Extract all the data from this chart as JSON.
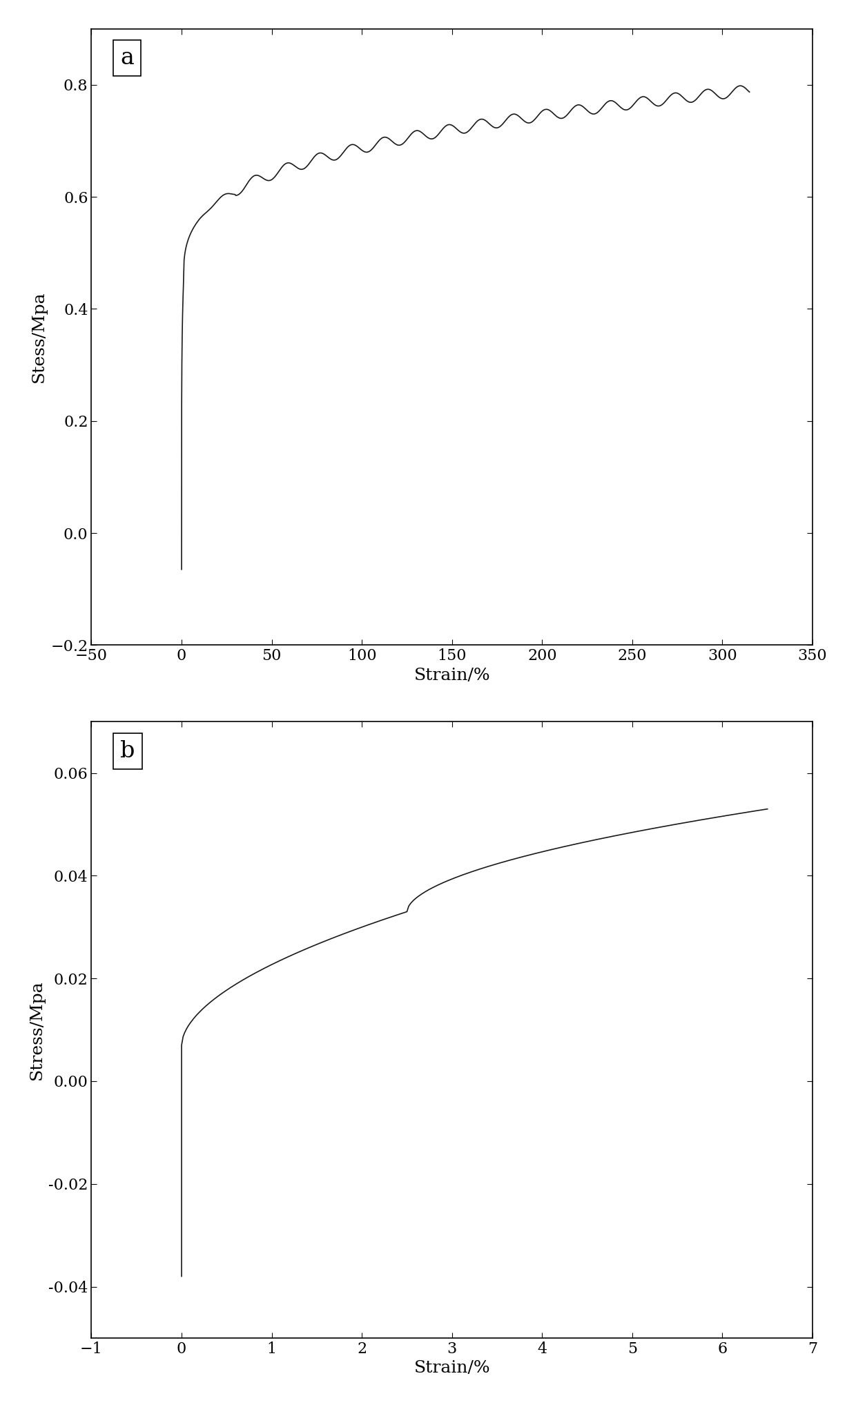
{
  "fig_width": 12.4,
  "fig_height": 20.35,
  "background_color": "#ffffff",
  "line_color": "#1a1a1a",
  "line_width": 1.2,
  "subplot_a": {
    "label": "a",
    "xlabel": "Strain/%",
    "ylabel": "Stess/Mpa",
    "xlim": [
      -50,
      350
    ],
    "ylim": [
      -0.2,
      0.9
    ],
    "xticks": [
      -50,
      0,
      50,
      100,
      150,
      200,
      250,
      300,
      350
    ],
    "yticks": [
      -0.2,
      0.0,
      0.2,
      0.4,
      0.6,
      0.8
    ],
    "tick_fontsize": 16,
    "label_fontsize": 18,
    "note_fontsize": 24
  },
  "subplot_b": {
    "label": "b",
    "xlabel": "Strain/%",
    "ylabel": "Stress/Mpa",
    "xlim": [
      -1,
      7
    ],
    "ylim": [
      -0.05,
      0.07
    ],
    "xticks": [
      -1,
      0,
      1,
      2,
      3,
      4,
      5,
      6,
      7
    ],
    "yticks": [
      -0.04,
      -0.02,
      0.0,
      0.02,
      0.04,
      0.06
    ],
    "tick_fontsize": 16,
    "label_fontsize": 18,
    "note_fontsize": 24
  }
}
